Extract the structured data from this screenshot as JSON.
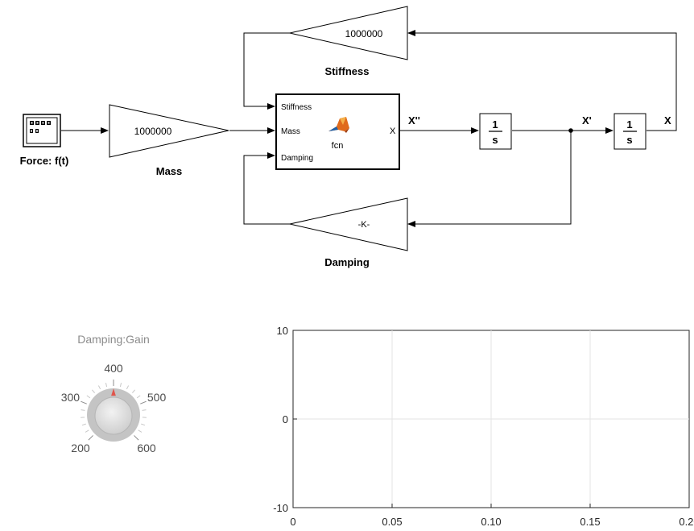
{
  "model": {
    "source_block": {
      "label": "Force: f(t)",
      "icon": "signal-builder-icon"
    },
    "mass_gain": {
      "label": "Mass",
      "value": "1000000"
    },
    "stiffness_gain": {
      "label": "Stiffness",
      "value": "1000000"
    },
    "damping_gain": {
      "label": "Damping",
      "value": "-K-"
    },
    "fcn_block": {
      "name": "fcn",
      "inputs": [
        "Stiffness",
        "Mass",
        "Damping"
      ],
      "output": "X",
      "icon": "matlab-function-icon"
    },
    "integrator_1": {
      "num": "1",
      "den": "s"
    },
    "integrator_2": {
      "num": "1",
      "den": "s"
    },
    "signals": {
      "accel": "X''",
      "velocity": "X'",
      "position": "X"
    }
  },
  "knob": {
    "title": "Damping:Gain",
    "ticks": [
      "200",
      "300",
      "400",
      "500",
      "600"
    ],
    "value": 400,
    "min": 200,
    "max": 600
  },
  "chart_data": {
    "type": "line",
    "title": "",
    "xlabel": "",
    "ylabel": "",
    "xlim": [
      0,
      0.2
    ],
    "ylim": [
      -10,
      10
    ],
    "x_ticks": [
      "0",
      "0.05",
      "0.10",
      "0.15",
      "0.20"
    ],
    "y_ticks": [
      "-10",
      "0",
      "10"
    ],
    "grid": true,
    "series": []
  }
}
